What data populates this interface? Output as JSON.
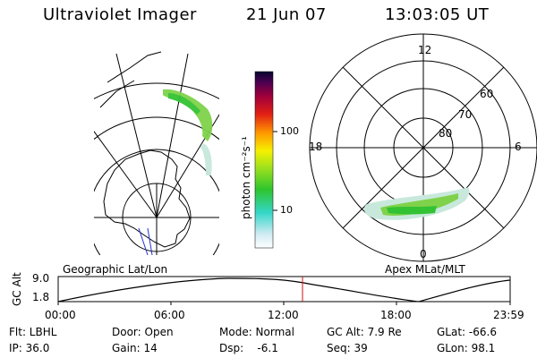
{
  "header": {
    "instrument": "Ultraviolet Imager",
    "date": "21 Jun 07",
    "time": "13:03:05 UT"
  },
  "colorbar": {
    "unit_label": "photon cm⁻²s⁻¹",
    "ticks": [
      "100",
      "10"
    ]
  },
  "geo_panel": {
    "label": "Geographic Lat/Lon"
  },
  "polar_panel": {
    "label": "Apex MLat/MLT",
    "mlt_labels": {
      "top": "12",
      "bottom": "0",
      "left": "18",
      "right": "6"
    },
    "lat_labels": [
      "60",
      "70",
      "80"
    ]
  },
  "altitude_plot": {
    "ylabel": "GC Alt",
    "yticks": [
      "9.0",
      "1.8"
    ],
    "xticks": [
      "00:00",
      "06:00",
      "12:00",
      "18:00",
      "23:59"
    ],
    "cursor_time": "13:03:05"
  },
  "status": {
    "row1": {
      "filter": "Flt: LBHL",
      "door": "Door: Open",
      "mode": "Mode: Normal",
      "gc_alt": "GC Alt: 7.9 Re",
      "glat": "GLat: -66.6"
    },
    "row2": {
      "ip": "IP: 36.0",
      "gain": "Gain: 14",
      "dsp": "Dsp:    -6.1",
      "seq": "Seq: 39",
      "glon": "GLon: 98.1"
    }
  }
}
